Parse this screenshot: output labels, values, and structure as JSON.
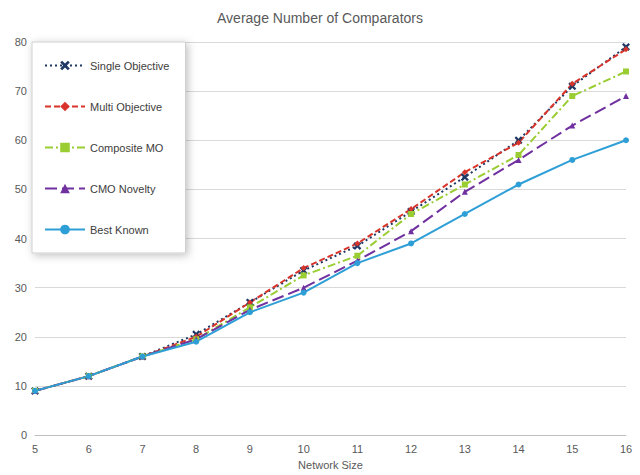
{
  "chart_data": {
    "type": "line",
    "title": "Average Number of Comparators",
    "x_label": "Network Size",
    "categories": [
      5,
      6,
      7,
      8,
      9,
      10,
      11,
      12,
      13,
      14,
      15,
      16
    ],
    "series": [
      {
        "name": "Single Objective",
        "color": "#1f3864",
        "marker": "x",
        "line_style": "dotted",
        "values": [
          9,
          12,
          16,
          20.5,
          27,
          33.5,
          38.5,
          45.5,
          52.5,
          60,
          71,
          79
        ]
      },
      {
        "name": "Multi Objective",
        "color": "#d9342b",
        "marker": "diamond",
        "line_style": "dashed",
        "values": [
          9,
          12,
          16,
          20,
          27,
          34,
          39,
          46,
          53.5,
          59.5,
          71.5,
          78.5
        ]
      },
      {
        "name": "Composite MO",
        "color": "#9acd32",
        "marker": "square",
        "line_style": "dashdot",
        "values": [
          9,
          12,
          16,
          19.5,
          26,
          32.5,
          36.5,
          45,
          51,
          57,
          69,
          74
        ]
      },
      {
        "name": "CMO Novelty",
        "color": "#7030a0",
        "marker": "triangle",
        "line_style": "longdash",
        "values": [
          9,
          12,
          16,
          19.5,
          25.5,
          30,
          35.5,
          41.5,
          49.5,
          56,
          63,
          69
        ]
      },
      {
        "name": "Best Known",
        "color": "#2e9fd6",
        "marker": "circle",
        "line_style": "solid",
        "values": [
          9,
          12,
          16,
          19,
          25,
          29,
          35,
          39,
          45,
          51,
          56,
          60
        ]
      }
    ],
    "ylim": [
      0,
      80
    ],
    "yticks": [
      0,
      10,
      20,
      30,
      40,
      50,
      60,
      70,
      80
    ],
    "grid": true,
    "legend": "top-left"
  }
}
